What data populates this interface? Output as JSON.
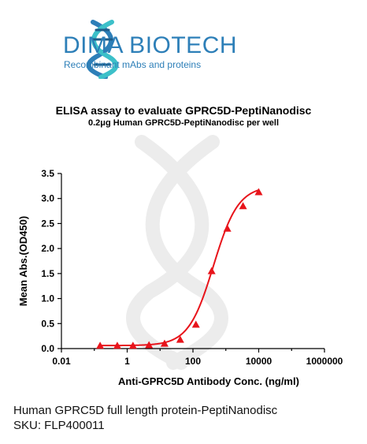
{
  "brand": {
    "name": "DIMA BIOTECH",
    "tagline": "Recombinant mAbs and proteins",
    "colors": {
      "primary": "#2d7fb8",
      "accent": "#3cc0c9",
      "helix_dark": "#1e5d8a"
    }
  },
  "chart_data": {
    "type": "scatter",
    "title": "ELISA assay to evaluate GPRC5D-PeptiNanodisc",
    "subtitle": "0.2μg Human GPRC5D-PeptiNanodisc per well",
    "xlabel": "Anti-GPRC5D Antibody Conc. (ng/ml)",
    "ylabel": "Mean Abs.(OD450)",
    "x_scale": "log",
    "xlim": [
      0.01,
      1000000
    ],
    "ylim": [
      0,
      3.5
    ],
    "x_tick_labels": [
      "0.01",
      "1",
      "100",
      "10000",
      "1000000"
    ],
    "x_tick_values": [
      0.01,
      1,
      100,
      10000,
      1000000
    ],
    "y_tick_labels": [
      "0.0",
      "0.5",
      "1.0",
      "1.5",
      "2.0",
      "2.5",
      "3.0",
      "3.5"
    ],
    "y_tick_values": [
      0,
      0.5,
      1.0,
      1.5,
      2.0,
      2.5,
      3.0,
      3.5
    ],
    "grid": false,
    "legend": "none",
    "marker": "triangle",
    "color": "#e8141b",
    "series": [
      {
        "x": [
          0.15,
          0.5,
          1.5,
          4.6,
          13.7,
          41,
          123,
          370,
          1111,
          3333,
          10000
        ],
        "y": [
          0.06,
          0.06,
          0.06,
          0.07,
          0.1,
          0.18,
          0.48,
          1.55,
          2.4,
          2.85,
          3.13
        ]
      }
    ],
    "fit": {
      "bottom": 0.06,
      "top": 3.25,
      "ec50": 420,
      "hill": 1.15
    }
  },
  "caption": {
    "line1": "Human GPRC5D full length protein-PeptiNanodisc",
    "line2": "SKU: FLP400011"
  }
}
